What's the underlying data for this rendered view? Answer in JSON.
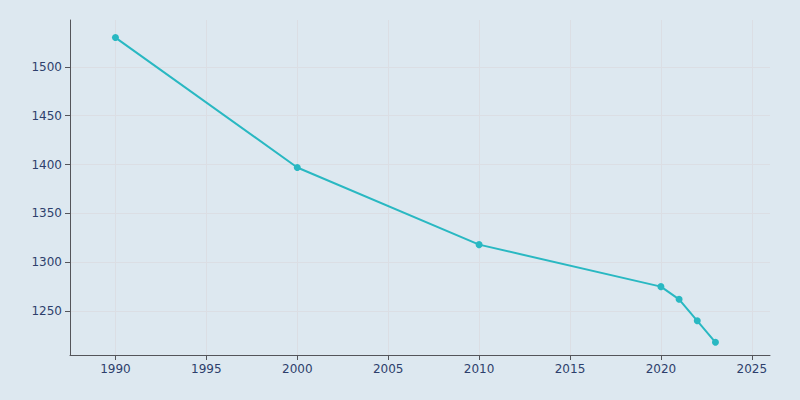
{
  "chart_data": {
    "type": "line",
    "x": [
      1990,
      2000,
      2010,
      2020,
      2021,
      2022,
      2023
    ],
    "values": [
      1530,
      1397,
      1318,
      1275,
      1262,
      1240,
      1218
    ],
    "color": "#29b8c2",
    "marker": "circle",
    "xlim": [
      1987.5,
      2026
    ],
    "ylim": [
      1205,
      1548
    ],
    "xticks": [
      1990,
      1995,
      2000,
      2005,
      2010,
      2015,
      2020,
      2025
    ],
    "yticks": [
      1250,
      1300,
      1350,
      1400,
      1450,
      1500
    ],
    "grid": true
  }
}
